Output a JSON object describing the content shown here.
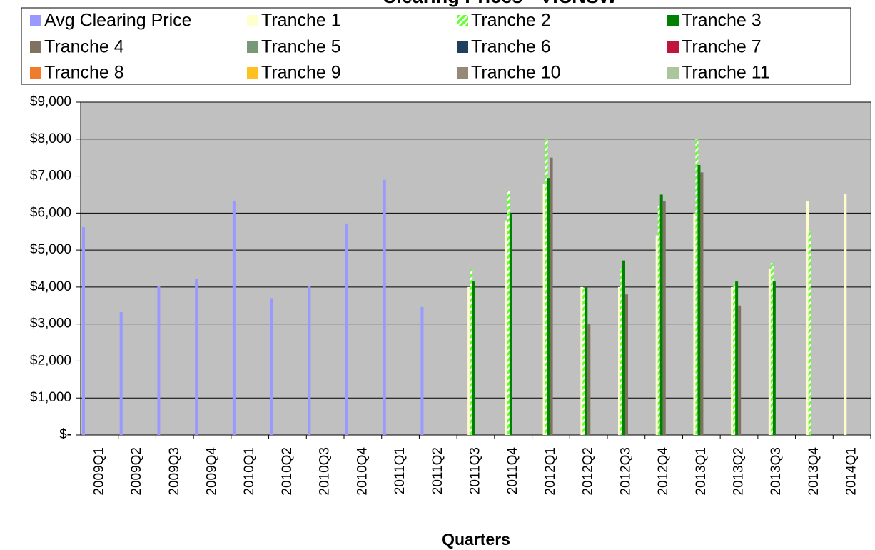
{
  "chart_data": {
    "type": "bar",
    "title": "Clearing Prices - VICNSW",
    "x_label": "Quarters",
    "categories": [
      "2009Q1",
      "2009Q2",
      "2009Q3",
      "2009Q4",
      "2010Q1",
      "2010Q2",
      "2010Q3",
      "2010Q4",
      "2011Q1",
      "2011Q2",
      "2011Q3",
      "2011Q4",
      "2012Q1",
      "2012Q2",
      "2012Q3",
      "2012Q4",
      "2013Q1",
      "2013Q2",
      "2013Q3",
      "2013Q4",
      "2014Q1"
    ],
    "series": [
      {
        "name": "Avg Clearing Price",
        "color": "#9999ff",
        "values": [
          5620,
          3320,
          4030,
          4220,
          6320,
          3700,
          4030,
          5720,
          6900,
          3460,
          null,
          null,
          null,
          null,
          null,
          null,
          null,
          null,
          null,
          null,
          null
        ]
      },
      {
        "name": "Tranche 1",
        "color": "#ffffcc",
        "values": [
          null,
          null,
          null,
          null,
          null,
          null,
          null,
          null,
          null,
          null,
          4000,
          5800,
          6800,
          4000,
          4000,
          5400,
          6000,
          4000,
          4500,
          6320,
          6520
        ]
      },
      {
        "name": "Tranche 2",
        "color": "#66ff33",
        "hatch": true,
        "values": [
          null,
          null,
          null,
          null,
          null,
          null,
          null,
          null,
          null,
          null,
          4500,
          6600,
          8000,
          3980,
          4500,
          6200,
          8000,
          4100,
          4650,
          5500,
          null
        ]
      },
      {
        "name": "Tranche 3",
        "color": "#008000",
        "values": [
          null,
          null,
          null,
          null,
          null,
          null,
          null,
          null,
          null,
          null,
          4150,
          6000,
          6950,
          4000,
          4720,
          6500,
          7300,
          4150,
          4150,
          null,
          null
        ]
      },
      {
        "name": "Tranche 4",
        "color": "#7f7261",
        "values": [
          null,
          null,
          null,
          null,
          null,
          null,
          null,
          null,
          null,
          null,
          null,
          null,
          7500,
          3000,
          3800,
          6320,
          7100,
          3500,
          null,
          null,
          null
        ]
      },
      {
        "name": "Tranche 5",
        "color": "#779977",
        "values": [
          null,
          null,
          null,
          null,
          null,
          null,
          null,
          null,
          null,
          null,
          null,
          null,
          null,
          null,
          null,
          null,
          null,
          null,
          null,
          null,
          null
        ]
      },
      {
        "name": "Tranche 6",
        "color": "#1f3f5f",
        "values": [
          null,
          null,
          null,
          null,
          null,
          null,
          null,
          null,
          null,
          null,
          null,
          null,
          null,
          null,
          null,
          null,
          null,
          null,
          null,
          null,
          null
        ]
      },
      {
        "name": "Tranche 7",
        "color": "#c0143c",
        "values": [
          null,
          null,
          null,
          null,
          null,
          null,
          null,
          null,
          null,
          null,
          null,
          null,
          null,
          null,
          null,
          null,
          null,
          null,
          null,
          null,
          null
        ]
      },
      {
        "name": "Tranche 8",
        "color": "#f07b2b",
        "values": [
          null,
          null,
          null,
          null,
          null,
          null,
          null,
          null,
          null,
          null,
          null,
          null,
          null,
          null,
          null,
          null,
          null,
          null,
          null,
          null,
          null
        ]
      },
      {
        "name": "Tranche 9",
        "color": "#ffc020",
        "values": [
          null,
          null,
          null,
          null,
          null,
          null,
          null,
          null,
          null,
          null,
          null,
          null,
          null,
          null,
          null,
          null,
          null,
          null,
          null,
          null,
          null
        ]
      },
      {
        "name": "Tranche 10",
        "color": "#948a77",
        "values": [
          null,
          null,
          null,
          null,
          null,
          null,
          null,
          null,
          null,
          null,
          null,
          null,
          null,
          null,
          null,
          null,
          null,
          null,
          null,
          null,
          null
        ]
      },
      {
        "name": "Tranche 11",
        "color": "#a9c79a",
        "values": [
          null,
          null,
          null,
          null,
          null,
          null,
          null,
          null,
          null,
          null,
          null,
          null,
          null,
          null,
          null,
          null,
          null,
          null,
          null,
          null,
          null
        ]
      }
    ],
    "ylim": [
      0,
      9000
    ],
    "yticks": [
      {
        "value": 0,
        "label": "$-"
      },
      {
        "value": 1000,
        "label": "$1,000"
      },
      {
        "value": 2000,
        "label": "$2,000"
      },
      {
        "value": 3000,
        "label": "$3,000"
      },
      {
        "value": 4000,
        "label": "$4,000"
      },
      {
        "value": 5000,
        "label": "$5,000"
      },
      {
        "value": 6000,
        "label": "$6,000"
      },
      {
        "value": 7000,
        "label": "$7,000"
      },
      {
        "value": 8000,
        "label": "$8,000"
      },
      {
        "value": 9000,
        "label": "$9,000"
      }
    ],
    "grid": true,
    "legend": "top",
    "plot_background": "#c0c0c0"
  }
}
